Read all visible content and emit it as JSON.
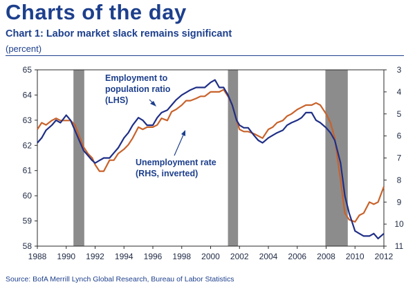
{
  "header": {
    "page_title": "Charts of the day",
    "chart_title": "Chart 1: Labor market slack remains significant",
    "chart_subtitle": "(percent)"
  },
  "footer": {
    "source": "Source: BofA Merrill Lynch Global Research, Bureau of Labor Statistics"
  },
  "chart_data": {
    "type": "line",
    "title": "Chart 1: Labor market slack remains significant",
    "subtitle": "(percent)",
    "x_range": [
      1988,
      2012
    ],
    "x_ticks": [
      "1988",
      "1990",
      "1992",
      "1994",
      "1996",
      "1998",
      "2000",
      "2002",
      "2004",
      "2006",
      "2008",
      "2010",
      "2012"
    ],
    "y_left": {
      "range": [
        58,
        65
      ],
      "ticks": [
        "65",
        "64",
        "63",
        "62",
        "61",
        "60",
        "59",
        "58"
      ]
    },
    "y_right": {
      "range": [
        3,
        11
      ],
      "inverted": true,
      "ticks": [
        "3",
        "4",
        "5",
        "6",
        "7",
        "8",
        "9",
        "10",
        "11"
      ]
    },
    "recessions": [
      [
        1990.5,
        1991.25
      ],
      [
        2001.2,
        2001.9
      ],
      [
        2007.95,
        2009.5
      ]
    ],
    "annotations": {
      "employment_lines": [
        "Employment to",
        "population ratio",
        "(LHS)"
      ],
      "unemployment_lines": [
        "Unemployment rate",
        "(RHS, inverted)"
      ]
    },
    "colors": {
      "employment": "#1f2f86",
      "unemployment": "#c8622a",
      "recession": "#8c8c8c"
    },
    "series": [
      {
        "name": "Employment to population ratio (LHS)",
        "axis": "left",
        "x": [
          1988.0,
          1988.3,
          1988.6,
          1989.0,
          1989.3,
          1989.6,
          1990.0,
          1990.3,
          1990.6,
          1990.9,
          1991.2,
          1991.5,
          1991.8,
          1992.0,
          1992.3,
          1992.6,
          1993.0,
          1993.3,
          1993.6,
          1994.0,
          1994.3,
          1994.6,
          1995.0,
          1995.3,
          1995.6,
          1996.0,
          1996.3,
          1996.6,
          1997.0,
          1997.3,
          1997.6,
          1998.0,
          1998.3,
          1998.6,
          1999.0,
          1999.3,
          1999.6,
          2000.0,
          2000.3,
          2000.6,
          2000.9,
          2001.2,
          2001.5,
          2001.8,
          2002.0,
          2002.3,
          2002.6,
          2003.0,
          2003.3,
          2003.6,
          2004.0,
          2004.3,
          2004.6,
          2005.0,
          2005.3,
          2005.6,
          2006.0,
          2006.3,
          2006.6,
          2007.0,
          2007.3,
          2007.6,
          2008.0,
          2008.3,
          2008.6,
          2009.0,
          2009.3,
          2009.6,
          2010.0,
          2010.3,
          2010.6,
          2011.0,
          2011.3,
          2011.6,
          2012.0
        ],
        "values": [
          62.1,
          62.3,
          62.6,
          62.8,
          63.0,
          62.9,
          63.2,
          63.0,
          62.6,
          62.2,
          61.8,
          61.6,
          61.4,
          61.3,
          61.4,
          61.5,
          61.5,
          61.7,
          61.9,
          62.3,
          62.5,
          62.8,
          63.1,
          63.0,
          62.8,
          62.8,
          63.1,
          63.3,
          63.4,
          63.6,
          63.8,
          64.0,
          64.1,
          64.2,
          64.3,
          64.3,
          64.3,
          64.5,
          64.6,
          64.3,
          64.3,
          64.0,
          63.6,
          63.0,
          62.8,
          62.7,
          62.7,
          62.4,
          62.2,
          62.1,
          62.3,
          62.4,
          62.5,
          62.6,
          62.8,
          62.9,
          63.0,
          63.1,
          63.3,
          63.3,
          63.0,
          62.9,
          62.7,
          62.5,
          62.2,
          61.3,
          60.0,
          59.3,
          58.6,
          58.5,
          58.4,
          58.4,
          58.5,
          58.3,
          58.5
        ]
      },
      {
        "name": "Unemployment rate (RHS, inverted)",
        "axis": "right",
        "x": [
          1988.0,
          1988.3,
          1988.6,
          1989.0,
          1989.3,
          1989.6,
          1990.0,
          1990.3,
          1990.6,
          1990.9,
          1991.2,
          1991.5,
          1991.8,
          1992.0,
          1992.3,
          1992.6,
          1993.0,
          1993.3,
          1993.6,
          1994.0,
          1994.3,
          1994.6,
          1995.0,
          1995.3,
          1995.6,
          1996.0,
          1996.3,
          1996.6,
          1997.0,
          1997.3,
          1997.6,
          1998.0,
          1998.3,
          1998.6,
          1999.0,
          1999.3,
          1999.6,
          2000.0,
          2000.3,
          2000.6,
          2000.9,
          2001.2,
          2001.5,
          2001.8,
          2002.0,
          2002.3,
          2002.6,
          2003.0,
          2003.3,
          2003.6,
          2004.0,
          2004.3,
          2004.6,
          2005.0,
          2005.3,
          2005.6,
          2006.0,
          2006.3,
          2006.6,
          2007.0,
          2007.3,
          2007.6,
          2008.0,
          2008.3,
          2008.6,
          2009.0,
          2009.3,
          2009.6,
          2010.0,
          2010.3,
          2010.6,
          2011.0,
          2011.3,
          2011.6,
          2012.0
        ],
        "values": [
          5.7,
          5.4,
          5.5,
          5.3,
          5.2,
          5.3,
          5.3,
          5.3,
          5.5,
          6.0,
          6.5,
          6.8,
          7.0,
          7.3,
          7.6,
          7.6,
          7.1,
          7.1,
          6.8,
          6.6,
          6.4,
          6.1,
          5.6,
          5.7,
          5.6,
          5.6,
          5.5,
          5.2,
          5.3,
          4.9,
          4.8,
          4.6,
          4.4,
          4.4,
          4.3,
          4.2,
          4.2,
          4.0,
          4.0,
          4.0,
          3.9,
          4.2,
          4.6,
          5.3,
          5.7,
          5.8,
          5.8,
          5.9,
          6.0,
          6.1,
          5.7,
          5.6,
          5.4,
          5.3,
          5.1,
          5.0,
          4.8,
          4.7,
          4.6,
          4.6,
          4.5,
          4.6,
          5.0,
          5.4,
          6.1,
          8.0,
          9.5,
          9.8,
          9.9,
          9.6,
          9.5,
          9.0,
          9.1,
          9.0,
          8.3
        ]
      }
    ]
  }
}
